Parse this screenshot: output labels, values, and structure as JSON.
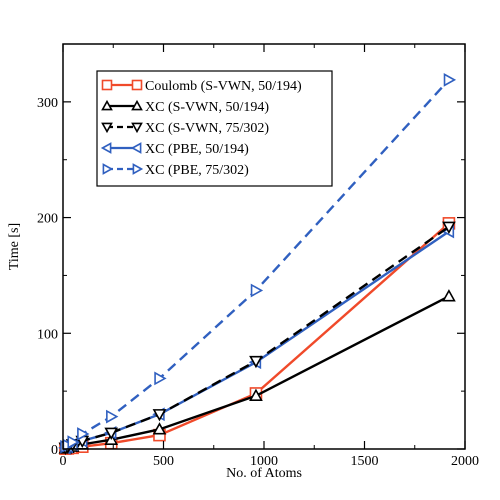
{
  "chart_data": {
    "type": "line",
    "title": "",
    "xlabel": "No. of Atoms",
    "ylabel": "Time [s]",
    "xlim": [
      0,
      2000
    ],
    "ylim": [
      0,
      350
    ],
    "xticks": [
      0,
      500,
      1000,
      1500,
      2000
    ],
    "yticks": [
      0,
      100,
      200,
      300
    ],
    "xtick_labels": [
      "0",
      "500",
      "1000",
      "1500",
      "2000"
    ],
    "ytick_labels": [
      "0",
      "100",
      "200",
      "300"
    ],
    "grid": false,
    "legend_position": "top-left",
    "series": [
      {
        "name": "Coulomb (S-VWN, 50/194)",
        "color": "#f04a2a",
        "dash": "solid",
        "marker": "square",
        "x": [
          12,
          24,
          48,
          96,
          240,
          480,
          960,
          1920
        ],
        "y": [
          0.3,
          0.5,
          1,
          2,
          5,
          12,
          48,
          195
        ]
      },
      {
        "name": "XC (S-VWN, 50/194)",
        "color": "#000000",
        "dash": "solid",
        "marker": "triangle-up",
        "x": [
          12,
          24,
          48,
          96,
          240,
          480,
          960,
          1920
        ],
        "y": [
          0.5,
          1,
          2,
          4,
          8,
          17,
          46,
          132
        ]
      },
      {
        "name": "XC (S-VWN, 75/302)",
        "color": "#000000",
        "dash": "dashed",
        "marker": "triangle-down",
        "x": [
          12,
          24,
          48,
          96,
          240,
          480,
          960,
          1920
        ],
        "y": [
          1,
          2,
          4,
          7,
          14,
          30,
          76,
          192
        ]
      },
      {
        "name": "XC (PBE, 50/194)",
        "color": "#3060c0",
        "dash": "solid",
        "marker": "triangle-left",
        "x": [
          12,
          24,
          48,
          96,
          240,
          480,
          960,
          1920
        ],
        "y": [
          1,
          2,
          4,
          7,
          14,
          30,
          75,
          188
        ]
      },
      {
        "name": "XC (PBE, 75/302)",
        "color": "#3060c0",
        "dash": "dashed",
        "marker": "triangle-right",
        "x": [
          12,
          24,
          48,
          96,
          240,
          480,
          960,
          1920
        ],
        "y": [
          2,
          3,
          6,
          13,
          28,
          61,
          137,
          319
        ]
      }
    ]
  }
}
